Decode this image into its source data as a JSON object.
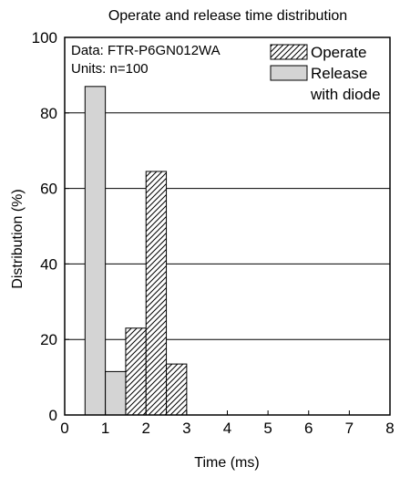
{
  "chart_data": {
    "type": "bar",
    "title": "Operate and release time distribution",
    "xlabel": "Time (ms)",
    "ylabel": "Distribution (%)",
    "xlim": [
      0,
      8
    ],
    "ylim": [
      0,
      100
    ],
    "xticks": [
      "0",
      "1",
      "2",
      "3",
      "4",
      "5",
      "6",
      "7",
      "8"
    ],
    "yticks": [
      "0",
      "20",
      "40",
      "60",
      "80",
      "100"
    ],
    "grid": "horizontal",
    "legend_position": "top-right",
    "info_lines": [
      "Data: FTR-P6GN012WA",
      "Units: n=100"
    ],
    "bin_width": 0.5,
    "series": [
      {
        "name": "Operate",
        "style": "hatched",
        "bins": [
          {
            "x": 1.5,
            "value": 23
          },
          {
            "x": 2.0,
            "value": 64.5
          },
          {
            "x": 2.5,
            "value": 13.5
          }
        ]
      },
      {
        "name": "Release with diode",
        "legend_lines": [
          "Release",
          "with diode"
        ],
        "style": "gray",
        "color": "#d4d4d4",
        "bins": [
          {
            "x": 0.5,
            "value": 87
          },
          {
            "x": 1.0,
            "value": 11.5
          }
        ]
      }
    ]
  }
}
